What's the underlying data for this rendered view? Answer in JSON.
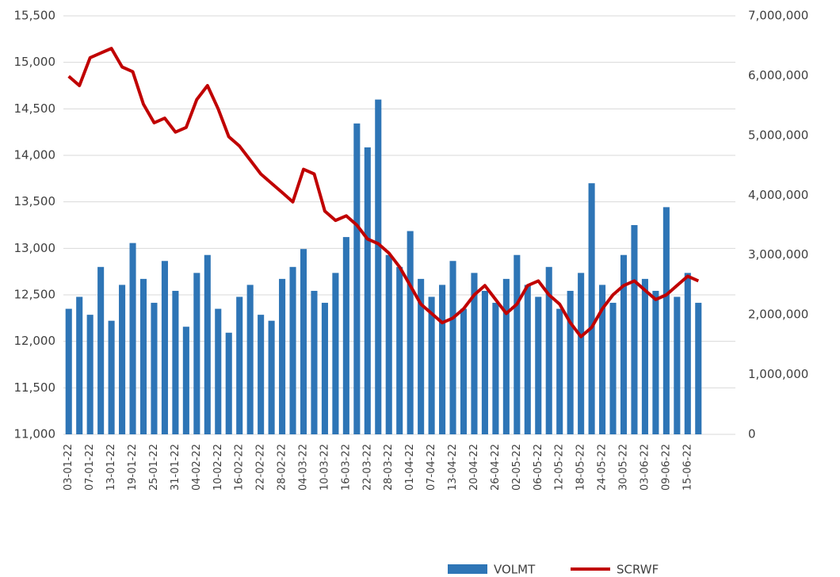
{
  "chart_data": {
    "type": "bar-line",
    "categories": [
      "03-01-22",
      null,
      "07-01-22",
      null,
      "13-01-22",
      null,
      "19-01-22",
      null,
      "25-01-22",
      null,
      "31-01-22",
      null,
      "04-02-22",
      null,
      "10-02-22",
      null,
      "16-02-22",
      null,
      "22-02-22",
      null,
      "28-02-22",
      null,
      "04-03-22",
      null,
      "10-03-22",
      null,
      "16-03-22",
      null,
      "22-03-22",
      null,
      "28-03-22",
      null,
      "01-04-22",
      null,
      "07-04-22",
      null,
      "13-04-22",
      null,
      "20-04-22",
      null,
      "26-04-22",
      null,
      "02-05-22",
      null,
      "06-05-22",
      null,
      "12-05-22",
      null,
      "18-05-22",
      null,
      "24-05-22",
      null,
      "30-05-22",
      null,
      "03-06-22",
      null,
      "09-06-22",
      null,
      "15-06-22",
      null
    ],
    "series": [
      {
        "name": "VOLMT",
        "color": "#2e75b6",
        "kind": "bar",
        "axis": "y2",
        "values": [
          2100000,
          2300000,
          2000000,
          2800000,
          1900000,
          2500000,
          3200000,
          2600000,
          2200000,
          2900000,
          2400000,
          1800000,
          2700000,
          3000000,
          2100000,
          1700000,
          2300000,
          2500000,
          2000000,
          1900000,
          2600000,
          2800000,
          3100000,
          2400000,
          2200000,
          2700000,
          3300000,
          5200000,
          4800000,
          5600000,
          3000000,
          2800000,
          3400000,
          2600000,
          2300000,
          2500000,
          2900000,
          2100000,
          2700000,
          2400000,
          2200000,
          2600000,
          3000000,
          2500000,
          2300000,
          2800000,
          2100000,
          2400000,
          2700000,
          4200000,
          2500000,
          2200000,
          3000000,
          3500000,
          2600000,
          2400000,
          3800000,
          2300000,
          2700000,
          2200000
        ]
      },
      {
        "name": "SCRWF",
        "color": "#c00000",
        "kind": "line",
        "values": [
          14850,
          14750,
          15050,
          15100,
          15150,
          14950,
          14900,
          14550,
          14350,
          14400,
          14250,
          14300,
          14600,
          14750,
          14500,
          14200,
          14100,
          13950,
          13800,
          13700,
          13600,
          13500,
          13850,
          13800,
          13400,
          13300,
          13350,
          13250,
          13100,
          13050,
          12950,
          12800,
          12600,
          12400,
          12300,
          12200,
          12250,
          12350,
          12500,
          12600,
          12450,
          12300,
          12400,
          12600,
          12650,
          12500,
          12400,
          12200,
          12050,
          12150,
          12350,
          12500,
          12600,
          12650,
          12550,
          12450,
          12500,
          12600,
          12700,
          12650
        ]
      }
    ],
    "ylim": [
      11000,
      15500
    ],
    "yticks": [
      {
        "value": 11000,
        "label": "11,000"
      },
      {
        "value": 11500,
        "label": "11,500"
      },
      {
        "value": 12000,
        "label": "12,000"
      },
      {
        "value": 12500,
        "label": "12,500"
      },
      {
        "value": 13000,
        "label": "13,000"
      },
      {
        "value": 13500,
        "label": "13,500"
      },
      {
        "value": 14000,
        "label": "14,000"
      },
      {
        "value": 14500,
        "label": "14,500"
      },
      {
        "value": 15000,
        "label": "15,000"
      },
      {
        "value": 15500,
        "label": "15,500"
      }
    ],
    "y2lim": [
      0,
      7000000
    ],
    "y2ticks": [
      0,
      {
        "value": 1000000,
        "label": "1,000,000"
      },
      {
        "value": 2000000,
        "label": "2,000,000"
      },
      {
        "value": 3000000,
        "label": "3,000,000"
      },
      {
        "value": 4000000,
        "label": "4,000,000"
      },
      {
        "value": 5000000,
        "label": "5,000,000"
      },
      {
        "value": 6000000,
        "label": "6,000,000"
      },
      {
        "value": 7000000,
        "label": "7,000,000"
      }
    ],
    "grid": true,
    "legend": "bottom"
  }
}
